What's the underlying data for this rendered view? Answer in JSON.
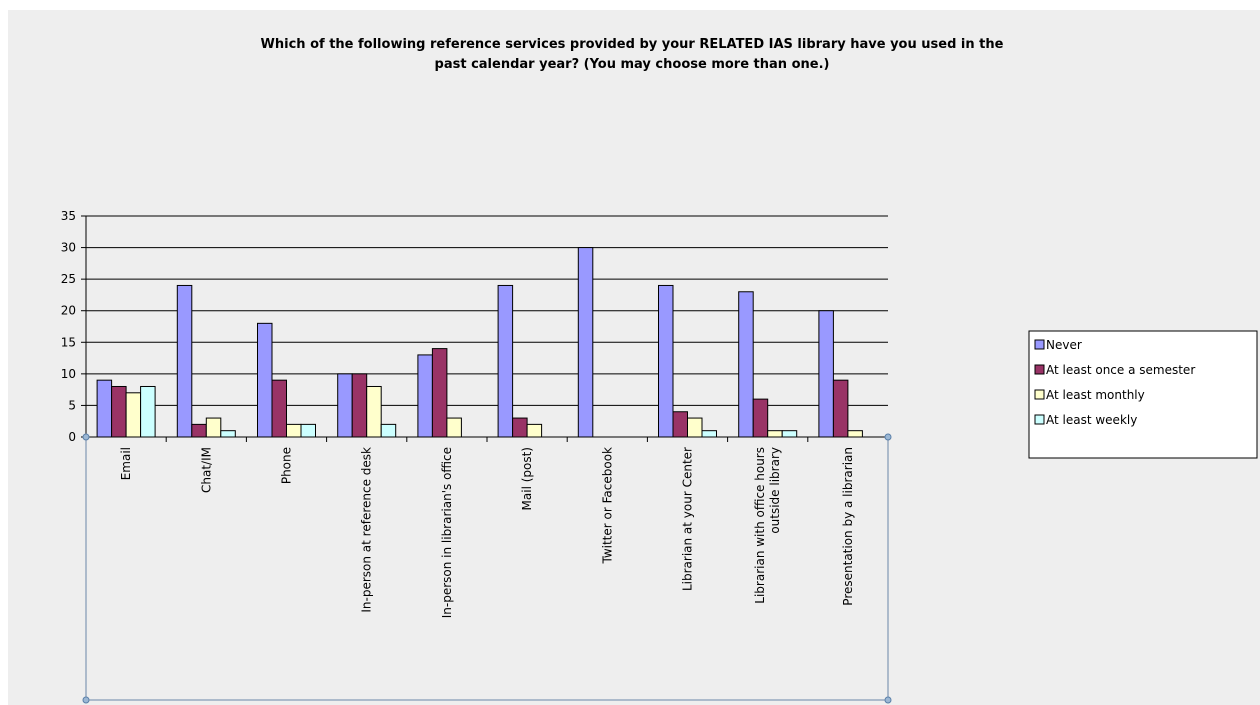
{
  "chart_data": {
    "type": "bar",
    "title_lines": [
      "Which of the following reference services provided by your RELATED  IAS library have you used in the",
      "past calendar year? (You may choose more than one.)"
    ],
    "xlabel": "",
    "ylabel": "",
    "ylim": [
      0,
      35
    ],
    "y_ticks": [
      0,
      5,
      10,
      15,
      20,
      25,
      30,
      35
    ],
    "grid": true,
    "legend_position": "right",
    "categories": [
      [
        "Email"
      ],
      [
        "Chat/IM"
      ],
      [
        "Phone"
      ],
      [
        "In-person at reference desk"
      ],
      [
        "In-person in librarian's office"
      ],
      [
        "Mail (post)"
      ],
      [
        "Twitter or Facebook"
      ],
      [
        "Librarian at your Center"
      ],
      [
        "Librarian with office hours",
        "outside library"
      ],
      [
        "Presentation by  a librarian"
      ]
    ],
    "series": [
      {
        "name": "Never",
        "color": "#9999ff",
        "values": [
          9,
          24,
          18,
          10,
          13,
          24,
          30,
          24,
          23,
          20
        ]
      },
      {
        "name": "At least once a semester",
        "color": "#993366",
        "values": [
          8,
          2,
          9,
          10,
          14,
          3,
          0,
          4,
          6,
          9
        ]
      },
      {
        "name": "At least monthly",
        "color": "#ffffcc",
        "values": [
          7,
          3,
          2,
          8,
          3,
          2,
          0,
          3,
          1,
          1
        ]
      },
      {
        "name": "At least weekly",
        "color": "#ccffff",
        "values": [
          8,
          1,
          2,
          2,
          0,
          0,
          0,
          1,
          1,
          0
        ]
      }
    ]
  }
}
